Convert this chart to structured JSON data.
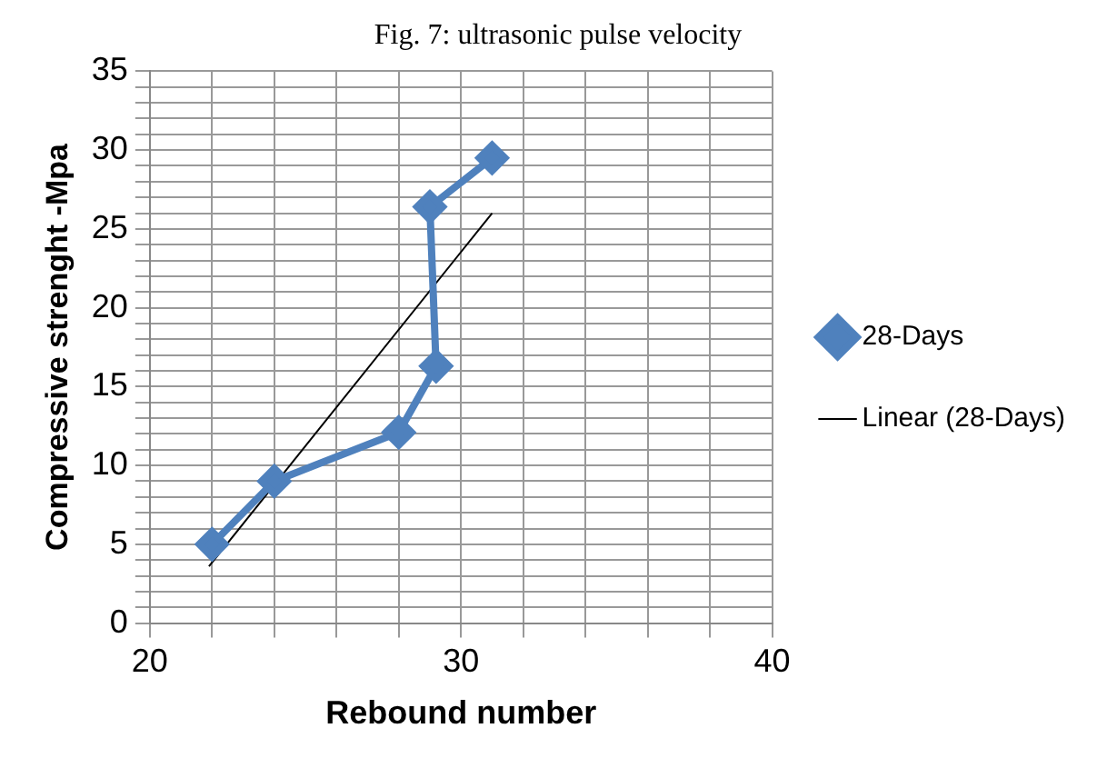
{
  "chart_data": {
    "type": "line",
    "title": "Fig. 7: ultrasonic pulse velocity",
    "xlabel": "Rebound number",
    "ylabel": "Compressive strenght -Mpa",
    "x": [
      22,
      24,
      28,
      29.2,
      29,
      31
    ],
    "series": [
      {
        "name": "28-Days",
        "color": "#4f81bd",
        "marker": "diamond",
        "values": [
          5,
          9,
          12.1,
          16.3,
          26.4,
          29.5
        ]
      },
      {
        "name": "Linear (28-Days)",
        "color": "#000000",
        "marker": "none",
        "x": [
          21.9,
          31
        ],
        "values": [
          3.6,
          26
        ]
      }
    ],
    "xlim": [
      20,
      40
    ],
    "xticks": [
      20,
      {
        "value": 22,
        "label": null
      },
      {
        "value": 24,
        "label": null
      },
      {
        "value": 26,
        "label": null
      },
      {
        "value": 28,
        "label": null
      },
      30,
      {
        "value": 32,
        "label": null
      },
      {
        "value": 34,
        "label": null
      },
      {
        "value": 36,
        "label": null
      },
      {
        "value": 38,
        "label": null
      },
      40
    ],
    "ylim": [
      0,
      35
    ],
    "yticks": [
      0,
      {
        "value": 1,
        "label": null
      },
      {
        "value": 2,
        "label": null
      },
      {
        "value": 3,
        "label": null
      },
      {
        "value": 4,
        "label": null
      },
      5,
      {
        "value": 6,
        "label": null
      },
      {
        "value": 7,
        "label": null
      },
      {
        "value": 8,
        "label": null
      },
      {
        "value": 9,
        "label": null
      },
      10,
      {
        "value": 11,
        "label": null
      },
      {
        "value": 12,
        "label": null
      },
      {
        "value": 13,
        "label": null
      },
      {
        "value": 14,
        "label": null
      },
      15,
      {
        "value": 16,
        "label": null
      },
      {
        "value": 17,
        "label": null
      },
      {
        "value": 18,
        "label": null
      },
      {
        "value": 19,
        "label": null
      },
      20,
      {
        "value": 21,
        "label": null
      },
      {
        "value": 22,
        "label": null
      },
      {
        "value": 23,
        "label": null
      },
      {
        "value": 24,
        "label": null
      },
      25,
      {
        "value": 26,
        "label": null
      },
      {
        "value": 27,
        "label": null
      },
      {
        "value": 28,
        "label": null
      },
      {
        "value": 29,
        "label": null
      },
      30,
      {
        "value": 31,
        "label": null
      },
      {
        "value": 32,
        "label": null
      },
      {
        "value": 33,
        "label": null
      },
      {
        "value": 34,
        "label": null
      },
      35
    ],
    "grid": true,
    "legend": "right",
    "line_style": "solid"
  }
}
